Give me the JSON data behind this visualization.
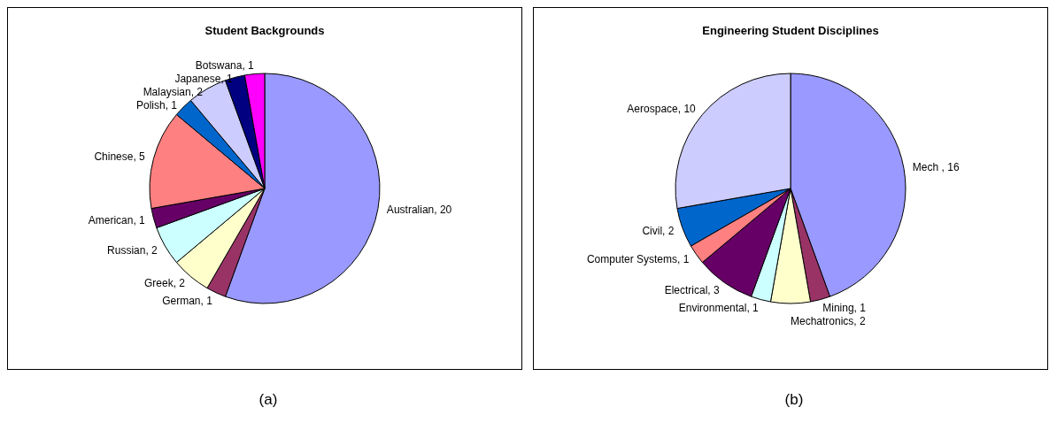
{
  "chart_data": [
    {
      "type": "pie",
      "title": "Student Backgrounds",
      "categories": [
        "Australian",
        "German",
        "Greek",
        "Russian",
        "American",
        "Chinese",
        "Polish",
        "Malaysian",
        "Japanese",
        "Botswana"
      ],
      "values": [
        20,
        1,
        2,
        2,
        1,
        5,
        1,
        2,
        1,
        1
      ],
      "value_labels": [
        ", 20",
        ", 1",
        ", 2",
        ", 2",
        ", 1",
        ", 5",
        ", 1",
        ", 2",
        ", 1",
        ", 1"
      ],
      "colors": [
        "#9999ff",
        "#993366",
        "#ffffcc",
        "#ccffff",
        "#660066",
        "#ff8080",
        "#0066cc",
        "#ccccff",
        "#000080",
        "#ff00ff"
      ],
      "legend": false,
      "annotations": [
        "(a)"
      ]
    },
    {
      "type": "pie",
      "title": "Engineering Student Disciplines",
      "categories": [
        "Mech ",
        "Mining",
        "Mechatronics",
        "Environmental",
        "Electrical",
        "Computer Systems",
        "Civil",
        "Aerospace"
      ],
      "values": [
        16,
        1,
        2,
        1,
        3,
        1,
        2,
        10
      ],
      "value_labels": [
        ", 16",
        ", 1",
        ", 2",
        ", 1",
        ", 3",
        ", 1",
        ", 2",
        ", 10"
      ],
      "colors": [
        "#9999ff",
        "#993366",
        "#ffffcc",
        "#ccffff",
        "#660066",
        "#ff8080",
        "#0066cc",
        "#ccccff"
      ],
      "legend": false,
      "annotations": [
        "(b)"
      ]
    }
  ]
}
